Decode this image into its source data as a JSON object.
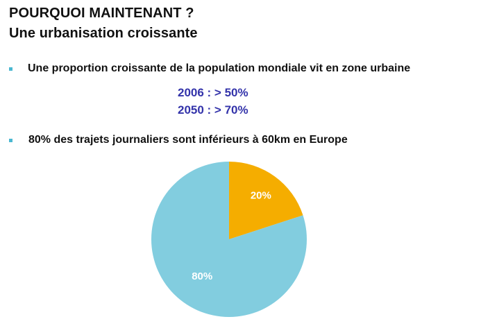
{
  "header": {
    "title_line1": "POURQUOI MAINTENANT ?",
    "title_line2": "Une urbanisation croissante"
  },
  "bullets": [
    {
      "text": "Une proportion croissante de la population mondiale vit en zone urbaine"
    },
    {
      "text": "80% des trajets journaliers sont inférieurs à 60km en Europe"
    }
  ],
  "stats": [
    "2006 : > 50%",
    "2050 : > 70%"
  ],
  "colors": {
    "bullet": "#4bb8d1",
    "stat_text": "#3333aa",
    "slice_small": "#f5ad00",
    "slice_large": "#82cddf"
  },
  "chart_data": {
    "type": "pie",
    "slices": [
      {
        "value": 20,
        "label": "20%",
        "color": "#f5ad00"
      },
      {
        "value": 80,
        "label": "80%",
        "color": "#82cddf"
      }
    ],
    "start_angle_deg": 0,
    "direction": "clockwise"
  }
}
